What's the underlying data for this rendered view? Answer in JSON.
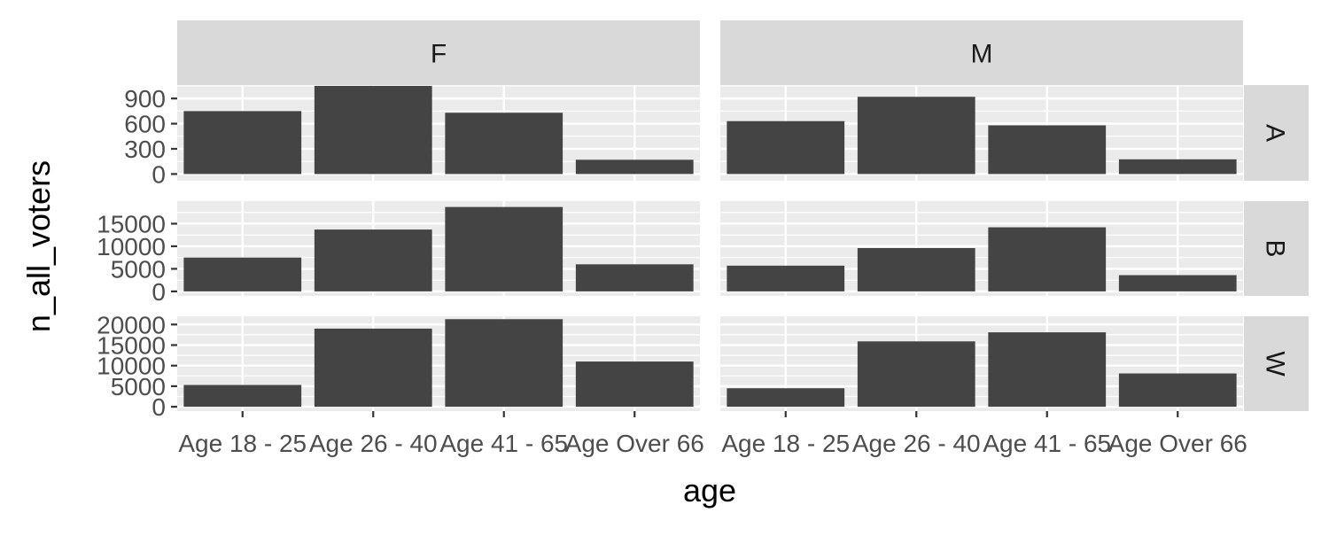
{
  "chart_data": {
    "type": "bar",
    "xlabel": "age",
    "ylabel": "n_all_voters",
    "facet_cols": [
      "F",
      "M"
    ],
    "facet_rows": [
      "A",
      "B",
      "W"
    ],
    "categories": [
      "Age 18 - 25",
      "Age 26 - 40",
      "Age 41 - 65",
      "Age Over 66"
    ],
    "grid": true,
    "rows": [
      {
        "name": "A",
        "ylim": [
          -80,
          1060
        ],
        "ticks": [
          0,
          300,
          600,
          900
        ]
      },
      {
        "name": "B",
        "ylim": [
          -1000,
          20000
        ],
        "ticks": [
          0,
          5000,
          10000,
          15000
        ]
      },
      {
        "name": "W",
        "ylim": [
          -1050,
          22000
        ],
        "ticks": [
          0,
          5000,
          10000,
          15000,
          20000
        ]
      }
    ],
    "panels": [
      {
        "col": "F",
        "row": "A",
        "values": [
          750,
          1050,
          730,
          170
        ]
      },
      {
        "col": "M",
        "row": "A",
        "values": [
          630,
          920,
          580,
          175
        ]
      },
      {
        "col": "F",
        "row": "B",
        "values": [
          7500,
          13700,
          18700,
          6000
        ]
      },
      {
        "col": "M",
        "row": "B",
        "values": [
          5700,
          9600,
          14200,
          3600
        ]
      },
      {
        "col": "F",
        "row": "W",
        "values": [
          5300,
          19000,
          21300,
          11000
        ]
      },
      {
        "col": "M",
        "row": "W",
        "values": [
          4500,
          15900,
          18100,
          8100
        ]
      }
    ]
  }
}
